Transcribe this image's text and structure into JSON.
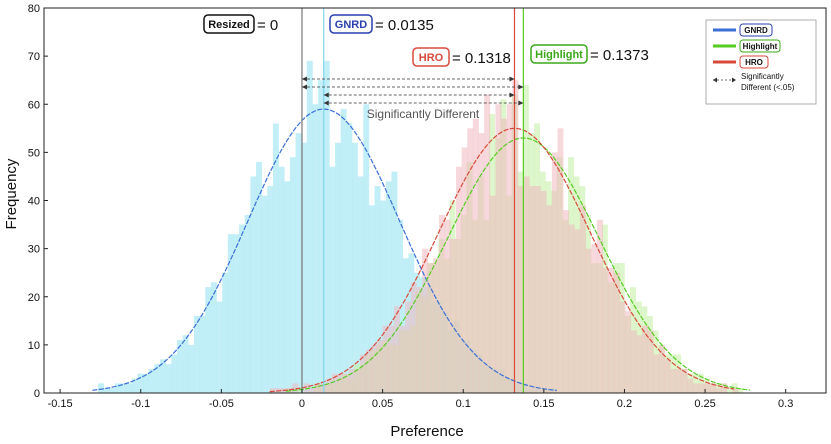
{
  "chart_data": {
    "type": "histogram",
    "xlabel": "Preference",
    "ylabel": "Frequency",
    "xlim": [
      -0.16,
      0.325
    ],
    "ylim": [
      0,
      80
    ],
    "xticks": [
      "-0.15",
      "-0.1",
      "-0.05",
      "0",
      "0.05",
      "0.1",
      "0.15",
      "0.2",
      "0.25",
      "0.3"
    ],
    "yticks": [
      "0",
      "10",
      "20",
      "30",
      "40",
      "50",
      "60",
      "70",
      "80"
    ],
    "grid": false,
    "series": [
      {
        "name": "GNRD",
        "color": "#3a6fd8",
        "fill": "#a8e8f4",
        "mean": 0.0135,
        "sd": 0.047,
        "peak": 59,
        "range": [
          -0.13,
          0.16
        ]
      },
      {
        "name": "Highlight",
        "color": "#55cc22",
        "fill": "#c8f0a8",
        "mean": 0.1373,
        "sd": 0.047,
        "peak": 53,
        "range": [
          -0.01,
          0.28
        ]
      },
      {
        "name": "HRO",
        "color": "#d84a3a",
        "fill": "#f0b8c0",
        "mean": 0.1318,
        "sd": 0.047,
        "peak": 55,
        "range": [
          -0.02,
          0.27
        ]
      }
    ],
    "reference_lines": [
      {
        "name": "Resized",
        "x": 0,
        "color": "#777777"
      },
      {
        "name": "GNRD",
        "x": 0.0135,
        "color": "#7fd4f0"
      },
      {
        "name": "HRO",
        "x": 0.1318,
        "color": "#d84a3a"
      },
      {
        "name": "Highlight",
        "x": 0.1373,
        "color": "#55cc22"
      }
    ],
    "annotations": {
      "resized": {
        "label": "Resized",
        "value": "= 0"
      },
      "gnrd": {
        "label": "GNRD",
        "value": "= 0.0135"
      },
      "hro": {
        "label": "HRO",
        "value": "= 0.1318"
      },
      "highlight": {
        "label": "Highlight",
        "value": "= 0.1373"
      },
      "sig_text": "Significantly Different"
    },
    "sig_arrows": [
      {
        "from": 0,
        "to": 0.1318
      },
      {
        "from": 0,
        "to": 0.1373
      },
      {
        "from": 0.0135,
        "to": 0.1318
      },
      {
        "from": 0.0135,
        "to": 0.1373
      }
    ],
    "legend": {
      "position": "top-right",
      "items": [
        {
          "label": "GNRD",
          "color": "#3a6fd8"
        },
        {
          "label": "Highlight",
          "color": "#55cc22"
        },
        {
          "label": "HRO",
          "color": "#d84a3a"
        }
      ],
      "sig_label_line1": "Significantly",
      "sig_label_line2": "Different (<.05)"
    }
  }
}
